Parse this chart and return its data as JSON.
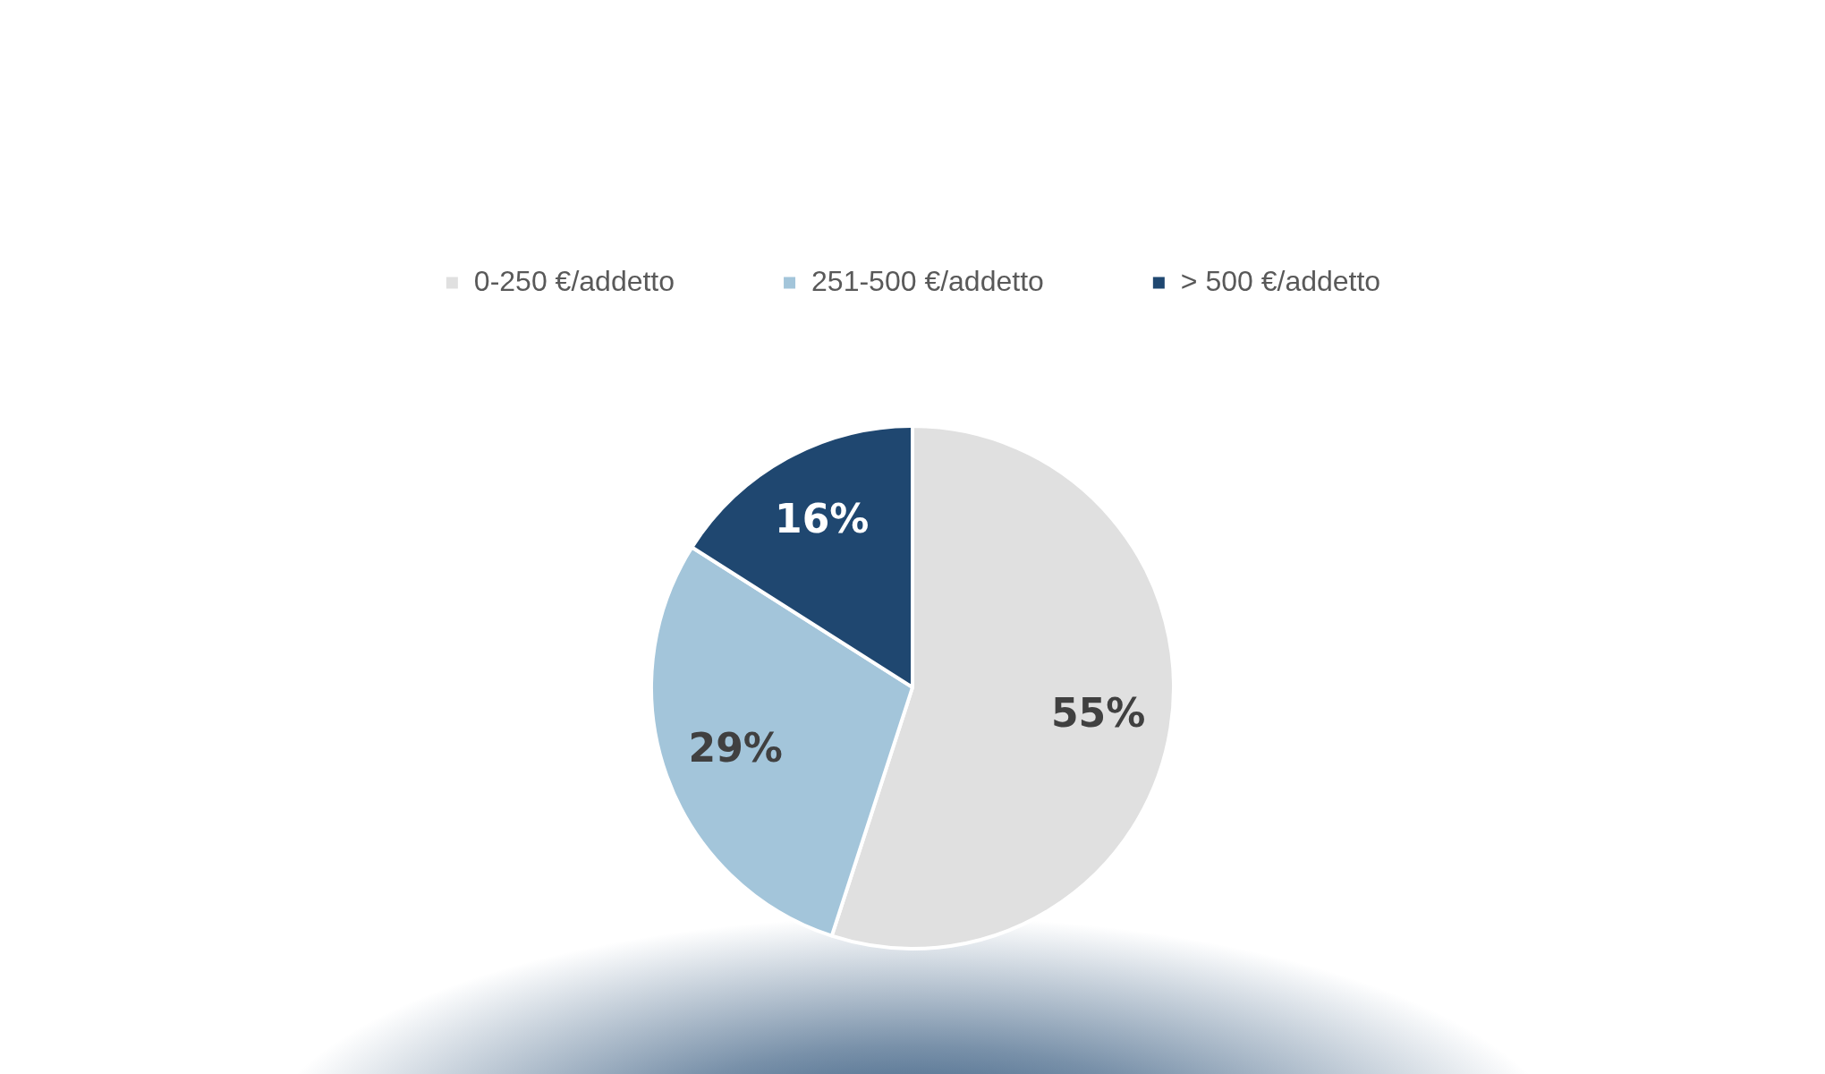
{
  "chart_data": {
    "type": "pie",
    "categories": [
      "0-250 €/addetto",
      "251-500 €/addetto",
      "> 500 €/addetto"
    ],
    "values": [
      55,
      29,
      16
    ],
    "colors": [
      "#e0e0e0",
      "#a3c5da",
      "#1f4770"
    ],
    "value_labels": [
      "55%",
      "29%",
      "16%"
    ],
    "legend": "top"
  }
}
